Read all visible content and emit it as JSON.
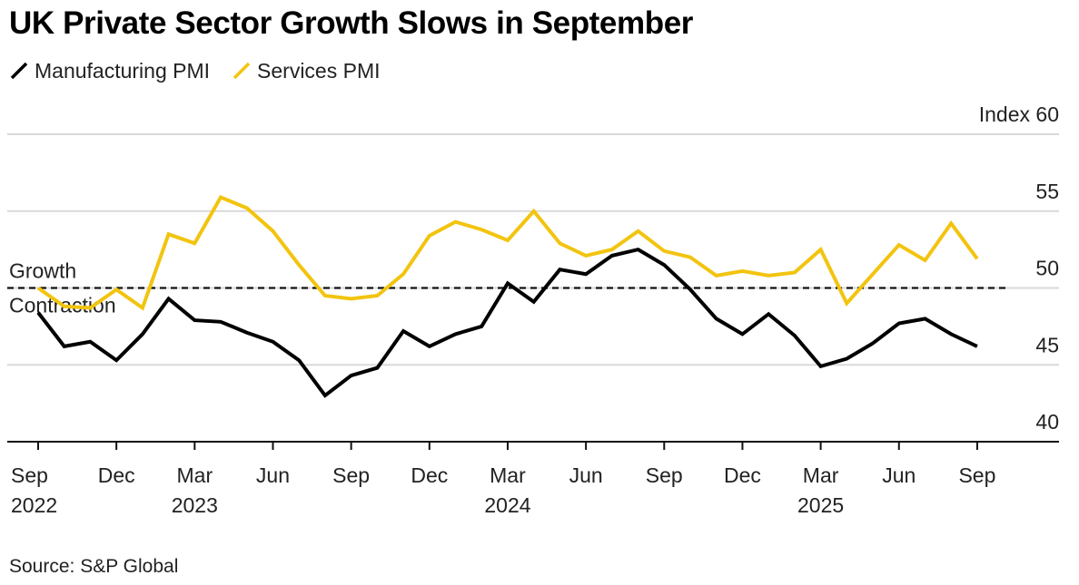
{
  "title": "UK Private Sector Growth Slows in September",
  "legend": [
    {
      "label": "Manufacturing PMI",
      "color": "#000000"
    },
    {
      "label": "Services PMI",
      "color": "#f2c40f"
    }
  ],
  "source": "Source: S&P Global",
  "chart_data": {
    "type": "line",
    "title": "UK Private Sector Growth Slows in September",
    "ylabel": "",
    "ylim": [
      40,
      60
    ],
    "yticks": [
      {
        "value": 60,
        "label": "Index 60"
      },
      {
        "value": 55,
        "label": "55"
      },
      {
        "value": 50,
        "label": "50"
      },
      {
        "value": 45,
        "label": "45"
      },
      {
        "value": 40,
        "label": "40"
      }
    ],
    "xticks": [
      {
        "index": 0,
        "month": "Sep",
        "year": "2022"
      },
      {
        "index": 3,
        "month": "Dec",
        "year": ""
      },
      {
        "index": 6,
        "month": "Mar",
        "year": "2023"
      },
      {
        "index": 9,
        "month": "Jun",
        "year": ""
      },
      {
        "index": 12,
        "month": "Sep",
        "year": ""
      },
      {
        "index": 15,
        "month": "Dec",
        "year": ""
      },
      {
        "index": 18,
        "month": "Mar",
        "year": "2024"
      },
      {
        "index": 21,
        "month": "Jun",
        "year": ""
      },
      {
        "index": 24,
        "month": "Sep",
        "year": ""
      },
      {
        "index": 27,
        "month": "Dec",
        "year": ""
      },
      {
        "index": 30,
        "month": "Mar",
        "year": "2025"
      },
      {
        "index": 33,
        "month": "Jun",
        "year": ""
      },
      {
        "index": 36,
        "month": "Sep",
        "year": ""
      }
    ],
    "x": [
      "2022-09",
      "2022-10",
      "2022-11",
      "2022-12",
      "2023-01",
      "2023-02",
      "2023-03",
      "2023-04",
      "2023-05",
      "2023-06",
      "2023-07",
      "2023-08",
      "2023-09",
      "2023-10",
      "2023-11",
      "2023-12",
      "2024-01",
      "2024-02",
      "2024-03",
      "2024-04",
      "2024-05",
      "2024-06",
      "2024-07",
      "2024-08",
      "2024-09",
      "2024-10",
      "2024-11",
      "2024-12",
      "2025-01",
      "2025-02",
      "2025-03",
      "2025-04",
      "2025-05",
      "2025-06",
      "2025-07",
      "2025-08",
      "2025-09"
    ],
    "series": [
      {
        "name": "Manufacturing PMI",
        "color": "#000000",
        "values": [
          48.4,
          46.2,
          46.5,
          45.3,
          47.0,
          49.3,
          47.9,
          47.8,
          47.1,
          46.5,
          45.3,
          43.0,
          44.3,
          44.8,
          47.2,
          46.2,
          47.0,
          47.5,
          50.3,
          49.1,
          51.2,
          50.9,
          52.1,
          52.5,
          51.5,
          49.9,
          48.0,
          47.0,
          48.3,
          46.9,
          44.9,
          45.4,
          46.4,
          47.7,
          48.0,
          47.0,
          46.2
        ]
      },
      {
        "name": "Services PMI",
        "color": "#f2c40f",
        "values": [
          50.0,
          48.8,
          48.7,
          49.9,
          48.7,
          53.5,
          52.9,
          55.9,
          55.2,
          53.7,
          51.5,
          49.5,
          49.3,
          49.5,
          50.9,
          53.4,
          54.3,
          53.8,
          53.1,
          55.0,
          52.9,
          52.1,
          52.5,
          53.7,
          52.4,
          52.0,
          50.8,
          51.1,
          50.8,
          51.0,
          52.5,
          49.0,
          50.9,
          52.8,
          51.8,
          54.2,
          51.9
        ]
      }
    ],
    "threshold": {
      "value": 50,
      "label_above": "Growth",
      "label_below": "Contraction"
    },
    "grid": true,
    "legend_position": "top-left"
  }
}
